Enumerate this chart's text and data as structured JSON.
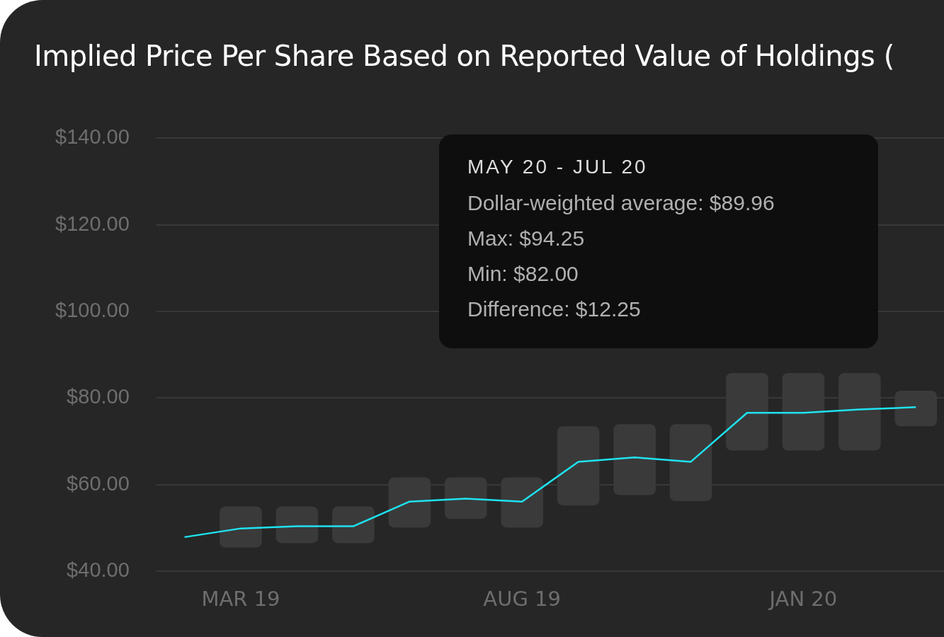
{
  "chart_data": {
    "type": "line",
    "title": "Implied Price Per Share Based on Reported Value of Holdings (",
    "categories": [
      null,
      "MAR 19",
      null,
      null,
      null,
      null,
      "AUG 19",
      null,
      null,
      null,
      null,
      "JAN 20",
      null,
      null
    ],
    "series": [
      {
        "type": "bar",
        "color": "#3a3a3a",
        "base": [
          null,
          45.5,
          46.5,
          46.5,
          50.1,
          52.1,
          50.1,
          55.2,
          57.6,
          56.2,
          67.9,
          67.9,
          67.9,
          73.5
        ],
        "values": [
          null,
          9.5,
          8.5,
          8.5,
          11.6,
          9.6,
          11.6,
          18.3,
          16.4,
          17.8,
          17.9,
          17.9,
          17.9,
          8.2
        ]
      },
      {
        "color": "#1ee3f0",
        "values": [
          47.9,
          49.9,
          50.4,
          50.4,
          56.1,
          56.8,
          56.1,
          65.3,
          66.3,
          65.3,
          76.6,
          76.6,
          77.4,
          77.9
        ]
      }
    ],
    "ylim": [
      40,
      140
    ],
    "yticks": [
      {
        "value": 40,
        "label": "$40.00"
      },
      {
        "value": 60,
        "label": "$60.00"
      },
      {
        "value": 80,
        "label": "$80.00"
      },
      {
        "value": 100,
        "label": "$100.00"
      },
      {
        "value": 120,
        "label": "$120.00"
      },
      {
        "value": 140,
        "label": "$140.00"
      }
    ],
    "grid": "y",
    "legend": false,
    "marker": "none",
    "line_style": "solid",
    "annotations": [
      "MAY 20 - JUL 20",
      "Dollar-weighted average: $89.96",
      "Max: $94.25",
      "Min: $82.00",
      "Difference: $12.25"
    ]
  }
}
